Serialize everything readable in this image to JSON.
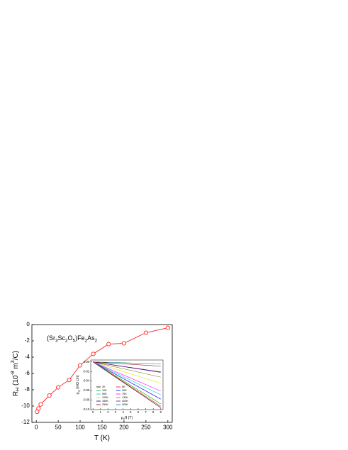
{
  "chart_data": [
    {
      "type": "line",
      "annotation_parts": [
        {
          "t": "(Sr"
        },
        {
          "t": "3",
          "s": "sub"
        },
        {
          "t": "Sc"
        },
        {
          "t": "2",
          "s": "sub"
        },
        {
          "t": "O"
        },
        {
          "t": "5",
          "s": "sub"
        },
        {
          "t": ")Fe"
        },
        {
          "t": "2",
          "s": "sub"
        },
        {
          "t": "As"
        },
        {
          "t": "2",
          "s": "sub"
        }
      ],
      "xlabel_parts": [
        {
          "t": "T (K)"
        }
      ],
      "ylabel_parts": [
        {
          "t": "R"
        },
        {
          "t": "H",
          "s": "sub"
        },
        {
          "t": " (10"
        },
        {
          "t": "-8",
          "s": "sup"
        },
        {
          "t": " m"
        },
        {
          "t": "3",
          "s": "sup"
        },
        {
          "t": "/C)"
        }
      ],
      "x": [
        2,
        5,
        10,
        30,
        50,
        75,
        100,
        130,
        165,
        200,
        250,
        300
      ],
      "series": [
        {
          "color": "#ff2020",
          "values": [
            -10.7,
            -10.3,
            -9.8,
            -8.7,
            -7.7,
            -6.8,
            -5.0,
            -3.6,
            -2.4,
            -2.3,
            -1.0,
            -0.4
          ]
        }
      ],
      "xlim": [
        -10,
        310
      ],
      "xticks": [
        0,
        50,
        100,
        150,
        200,
        250,
        300
      ],
      "ylim": [
        -12,
        0
      ],
      "yticks": [
        -12,
        -10,
        -8,
        -6,
        -4,
        -2,
        0
      ]
    },
    {
      "type": "line",
      "xlabel_parts": [
        {
          "t": "μ"
        },
        {
          "t": "0",
          "s": "sub"
        },
        {
          "t": "H (T)"
        }
      ],
      "ylabel_parts": [
        {
          "t": "ρ"
        },
        {
          "t": "xy",
          "s": "sub"
        },
        {
          "t": " (mΩ cm)"
        }
      ],
      "x": [
        0,
        9
      ],
      "series": [
        {
          "name": "2K",
          "color": "#000000",
          "values": [
            0,
            -0.096
          ]
        },
        {
          "name": "5K",
          "color": "#ff0000",
          "values": [
            0,
            -0.093
          ]
        },
        {
          "name": "10K",
          "color": "#00aa00",
          "values": [
            0,
            -0.088
          ]
        },
        {
          "name": "30K",
          "color": "#0000ff",
          "values": [
            0,
            -0.078
          ]
        },
        {
          "name": "50K",
          "color": "#00cccc",
          "values": [
            0,
            -0.069
          ]
        },
        {
          "name": "75K",
          "color": "#ff00ff",
          "values": [
            0,
            -0.061
          ]
        },
        {
          "name": "100K",
          "color": "#e0e000",
          "values": [
            0,
            -0.045
          ]
        },
        {
          "name": "130K",
          "color": "#808000",
          "values": [
            0,
            -0.032
          ]
        },
        {
          "name": "165K",
          "color": "#000080",
          "values": [
            0,
            -0.022
          ]
        },
        {
          "name": "200K",
          "color": "#800080",
          "values": [
            0,
            -0.021
          ]
        },
        {
          "name": "250K",
          "color": "#800000",
          "values": [
            0,
            -0.009
          ]
        },
        {
          "name": "300K",
          "color": "#008080",
          "values": [
            0,
            -0.004
          ]
        }
      ],
      "xlim": [
        -0.3,
        9.3
      ],
      "xticks": [
        0,
        1,
        2,
        3,
        4,
        5,
        6,
        7,
        8,
        9
      ],
      "ylim": [
        -0.1,
        0.004
      ],
      "yticks": [
        {
          "value": -0.1,
          "label": "-0.10"
        },
        {
          "value": -0.08,
          "label": "-0.08"
        },
        {
          "value": -0.06,
          "label": "-0.06"
        },
        {
          "value": -0.04,
          "label": "-0.04"
        },
        {
          "value": -0.02,
          "label": "-0.02"
        },
        {
          "value": 0,
          "label": "0.00"
        }
      ]
    }
  ]
}
